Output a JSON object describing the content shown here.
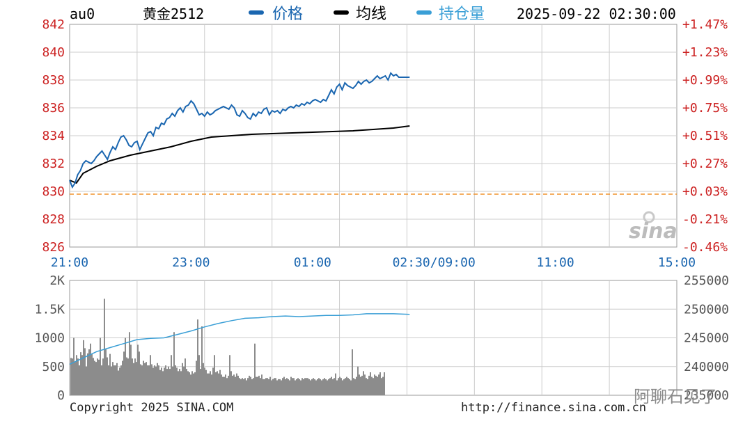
{
  "header": {
    "symbol": "au0",
    "name": "黄金2512",
    "datetime": "2025-09-22 02:30:00",
    "legend": [
      {
        "label": "价格",
        "color": "#1a66b0"
      },
      {
        "label": "均线",
        "color": "#000000"
      },
      {
        "label": "持仓量",
        "color": "#3a9fd6"
      }
    ]
  },
  "footer": {
    "copyright": "Copyright 2025 SINA.COM",
    "url": "http://finance.sina.com.cn"
  },
  "watermark": {
    "logo": "sina",
    "text": "阿聊石见了"
  },
  "colors": {
    "price": "#1a66b0",
    "avg": "#000000",
    "oi": "#3a9fd6",
    "volume": "#8c8c8c",
    "ref": "#f0942e",
    "price_axis": "#cc2222",
    "time_axis": "#1a66b0",
    "grid": "#cccccc"
  },
  "chart_data": [
    {
      "type": "line",
      "title": "黄金2512",
      "x_ticks": [
        "21:00",
        "23:00",
        "01:00",
        "02:30/09:00",
        "11:00",
        "15:00"
      ],
      "x_range": [
        0,
        450
      ],
      "ylim": [
        826,
        842
      ],
      "y_ticks": [
        842,
        840,
        838,
        836,
        834,
        832,
        830,
        828,
        826
      ],
      "y2_ticks": [
        "+1.47%",
        "+1.23%",
        "+0.99%",
        "+0.75%",
        "+0.51%",
        "+0.27%",
        "+0.03%",
        "-0.21%",
        "-0.46%"
      ],
      "reference_price": 829.8,
      "grid": true,
      "series": [
        {
          "name": "价格",
          "x": [
            0,
            2,
            4,
            6,
            8,
            10,
            12,
            14,
            16,
            18,
            20,
            22,
            24,
            26,
            28,
            30,
            32,
            34,
            36,
            38,
            40,
            42,
            44,
            46,
            48,
            50,
            52,
            54,
            56,
            58,
            60,
            62,
            64,
            66,
            68,
            70,
            72,
            74,
            76,
            78,
            80,
            82,
            84,
            86,
            88,
            90,
            92,
            94,
            96,
            98,
            100,
            102,
            104,
            106,
            108,
            110,
            112,
            114,
            116,
            118,
            120,
            122,
            124,
            126,
            128,
            130,
            132,
            134,
            136,
            138,
            140,
            142,
            144,
            146,
            148,
            150,
            152,
            154,
            156,
            158,
            160,
            162,
            164,
            166,
            168,
            170,
            172,
            174,
            176,
            178,
            180,
            182,
            184,
            186,
            188,
            190,
            192,
            194,
            196,
            198,
            200,
            202,
            204,
            206,
            208,
            210,
            212,
            214,
            216,
            218,
            220,
            222,
            224,
            226,
            228,
            230,
            232,
            234,
            236,
            238,
            240,
            242,
            244,
            246,
            248,
            250,
            252
          ],
          "values": [
            830.8,
            830.3,
            830.6,
            831.2,
            831.5,
            832.0,
            832.2,
            832.1,
            832.0,
            832.2,
            832.5,
            832.7,
            832.9,
            832.6,
            832.3,
            832.8,
            833.2,
            833.0,
            833.5,
            833.9,
            834.0,
            833.7,
            833.3,
            833.2,
            833.5,
            833.6,
            833.0,
            833.4,
            833.8,
            834.2,
            834.3,
            834.0,
            834.6,
            834.5,
            834.9,
            834.8,
            835.2,
            835.3,
            835.6,
            835.4,
            835.8,
            836.0,
            835.7,
            836.1,
            836.2,
            836.5,
            836.3,
            835.9,
            835.5,
            835.6,
            835.4,
            835.7,
            835.5,
            835.6,
            835.8,
            835.9,
            836.0,
            836.1,
            836.0,
            835.9,
            836.2,
            836.0,
            835.5,
            835.4,
            835.8,
            835.6,
            835.3,
            835.2,
            835.6,
            835.4,
            835.7,
            835.6,
            835.9,
            836.0,
            835.5,
            835.8,
            835.7,
            835.8,
            835.6,
            835.9,
            835.8,
            836.0,
            836.1,
            836.0,
            836.2,
            836.1,
            836.3,
            836.2,
            836.4,
            836.3,
            836.5,
            836.6,
            836.5,
            836.4,
            836.6,
            836.5,
            836.9,
            837.3,
            837.0,
            837.5,
            837.7,
            837.3,
            837.8,
            837.6,
            837.5,
            837.4,
            837.6,
            837.9,
            837.7,
            837.9,
            838.0,
            837.8,
            837.9,
            838.1,
            838.3,
            838.1,
            838.2,
            838.3,
            838.0,
            838.5,
            838.3,
            838.4,
            838.2,
            838.2,
            838.2,
            838.2,
            838.2
          ]
        },
        {
          "name": "均线",
          "x": [
            0,
            5,
            10,
            20,
            30,
            45,
            60,
            75,
            90,
            105,
            120,
            135,
            150,
            165,
            180,
            195,
            210,
            225,
            240,
            252
          ],
          "values": [
            830.8,
            830.6,
            831.3,
            831.8,
            832.2,
            832.6,
            832.9,
            833.2,
            833.6,
            833.9,
            834.0,
            834.1,
            834.15,
            834.2,
            834.25,
            834.3,
            834.35,
            834.45,
            834.55,
            834.7
          ]
        }
      ]
    },
    {
      "type": "bar",
      "title": "",
      "x_range": [
        0,
        450
      ],
      "ylim": [
        0,
        2000
      ],
      "y_ticks": [
        "2K",
        "1.5K",
        "1000",
        "500",
        "0"
      ],
      "y2_ticks": [
        255000,
        250000,
        245000,
        240000,
        235000
      ],
      "grid": true,
      "series": [
        {
          "name": "volume",
          "values": [
            650,
            640,
            1000,
            580,
            700,
            640,
            520,
            750,
            700,
            960,
            820,
            500,
            730,
            800,
            900,
            720,
            650,
            600,
            580,
            640,
            620,
            1000,
            520,
            640,
            1680,
            800,
            660,
            520,
            720,
            500,
            580,
            520,
            520,
            560,
            430,
            480,
            520,
            600,
            760,
            1000,
            660,
            640,
            1100,
            880,
            640,
            560,
            640,
            580,
            880,
            760,
            540,
            520,
            600,
            560,
            580,
            520,
            520,
            700,
            540,
            480,
            520,
            500,
            560,
            520,
            440,
            480,
            420,
            480,
            520,
            460,
            500,
            460,
            700,
            500,
            1100,
            520,
            480,
            420,
            460,
            420,
            560,
            500,
            640,
            460,
            420,
            400,
            360,
            420,
            380,
            400,
            600,
            1320,
            700,
            460,
            1200,
            560,
            480,
            440,
            380,
            380,
            420,
            360,
            480,
            700,
            400,
            420,
            380,
            440,
            360,
            320,
            320,
            360,
            300,
            340,
            700,
            420,
            340,
            360,
            320,
            380,
            340,
            300,
            280,
            300,
            280,
            300,
            260,
            300,
            340,
            320,
            280,
            300,
            900,
            320,
            320,
            340,
            300,
            360,
            280,
            280,
            300,
            300,
            280,
            320,
            260,
            280,
            300,
            300,
            260,
            280,
            280,
            260,
            300,
            320,
            280,
            300,
            280,
            260,
            320,
            300,
            300,
            260,
            280,
            300,
            280,
            260,
            300,
            280,
            300,
            300,
            300,
            280,
            260,
            280,
            300,
            280,
            260,
            280,
            300,
            280,
            260,
            280,
            300,
            280,
            260,
            280,
            300,
            320,
            280,
            300,
            380,
            260,
            300,
            320,
            300,
            260,
            280,
            300,
            320,
            300,
            280,
            260,
            800,
            300,
            280,
            320,
            500,
            360,
            320,
            340,
            420,
            360,
            300,
            280,
            340,
            400,
            320,
            300,
            360,
            340,
            320,
            360,
            400,
            300,
            320,
            400
          ]
        },
        {
          "name": "持仓量",
          "x": [
            0,
            10,
            20,
            30,
            40,
            50,
            60,
            70,
            80,
            90,
            100,
            110,
            120,
            130,
            140,
            150,
            160,
            170,
            180,
            190,
            200,
            210,
            220,
            230,
            240,
            252
          ],
          "values": [
            240400,
            241500,
            242600,
            243300,
            244000,
            244700,
            244900,
            245000,
            245600,
            246200,
            246900,
            247500,
            248000,
            248400,
            248500,
            248700,
            248800,
            248700,
            248800,
            248900,
            248900,
            249000,
            249200,
            249200,
            249200,
            249100
          ]
        }
      ]
    }
  ]
}
